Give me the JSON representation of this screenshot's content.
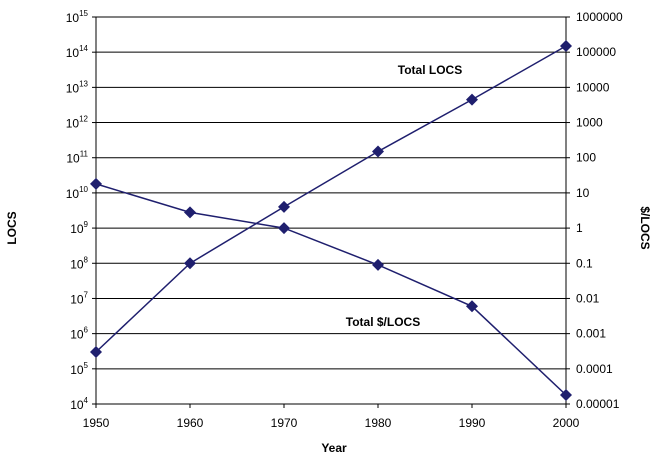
{
  "chart_data": {
    "type": "line",
    "title": "",
    "xlabel": "Year",
    "ylabel_left": "LOCS",
    "ylabel_right": "$/LOCS",
    "x": [
      1950,
      1960,
      1970,
      1980,
      1990,
      2000
    ],
    "xlim": [
      1950,
      2000
    ],
    "x_ticks": [
      "1950",
      "1960",
      "1970",
      "1980",
      "1990",
      "2000"
    ],
    "y_left_scale": "log",
    "y_left_lim": [
      10000,
      1000000000000000.0
    ],
    "y_left_ticks": [
      {
        "base": "10",
        "exp": "4"
      },
      {
        "base": "10",
        "exp": "5"
      },
      {
        "base": "10",
        "exp": "6"
      },
      {
        "base": "10",
        "exp": "7"
      },
      {
        "base": "10",
        "exp": "8"
      },
      {
        "base": "10",
        "exp": "9"
      },
      {
        "base": "10",
        "exp": "10"
      },
      {
        "base": "10",
        "exp": "11"
      },
      {
        "base": "10",
        "exp": "12"
      },
      {
        "base": "10",
        "exp": "13"
      },
      {
        "base": "10",
        "exp": "14"
      },
      {
        "base": "10",
        "exp": "15"
      }
    ],
    "y_right_scale": "log",
    "y_right_lim": [
      1e-05,
      1000000
    ],
    "y_right_ticks": [
      "0.00001",
      "0.0001",
      "0.001",
      "0.01",
      "0.1",
      "1",
      "10",
      "100",
      "1000",
      "10000",
      "100000",
      "1000000"
    ],
    "grid": "horizontal",
    "series": [
      {
        "name": "Total LOCS",
        "axis": "left",
        "values": [
          300000,
          100000000,
          4000000000,
          150000000000,
          4500000000000,
          150000000000000
        ]
      },
      {
        "name": "Total $/LOCS",
        "axis": "right",
        "values": [
          18,
          2.8,
          1,
          0.09,
          0.006,
          1.8e-05
        ]
      }
    ],
    "colors": {
      "series": "#1f1f6e",
      "grid": "#000000",
      "axes": "#000000"
    }
  }
}
